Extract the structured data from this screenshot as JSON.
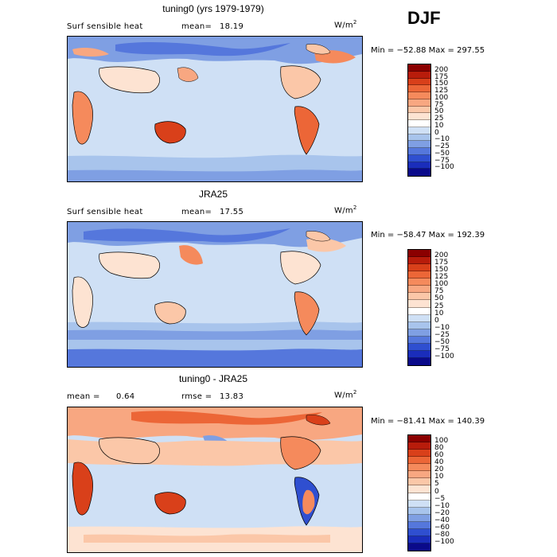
{
  "season": "DJF",
  "panels": [
    {
      "title": "tuning0 (yrs 1979-1979)",
      "left_label": "Surf sensible heat",
      "stat_label": "mean=",
      "stat_value": "18.19",
      "units": "W/m",
      "units_sup": "2",
      "minmax": "Min = −52.88  Max = 297.55",
      "scale_labels": [
        "200",
        "175",
        "150",
        "125",
        "100",
        "75",
        "50",
        "25",
        "10",
        "0",
        "−10",
        "−25",
        "−50",
        "−75",
        "−100"
      ],
      "colors": [
        "#8b0000",
        "#b81c0b",
        "#d9401a",
        "#ec6637",
        "#f58a5c",
        "#f8a781",
        "#fbc7a8",
        "#fde3d2",
        "#ffffff",
        "#cfe0f5",
        "#a8c4ec",
        "#7f9fe3",
        "#5577dc",
        "#2f4fd0",
        "#1a2dbb",
        "#0a0a8a"
      ]
    },
    {
      "title": "JRA25",
      "left_label": "Surf sensible heat",
      "stat_label": "mean=",
      "stat_value": "17.55",
      "units": "W/m",
      "units_sup": "2",
      "minmax": "Min = −58.47  Max = 192.39",
      "scale_labels": [
        "200",
        "175",
        "150",
        "125",
        "100",
        "75",
        "50",
        "25",
        "10",
        "0",
        "−10",
        "−25",
        "−50",
        "−75",
        "−100"
      ],
      "colors": [
        "#8b0000",
        "#b81c0b",
        "#d9401a",
        "#ec6637",
        "#f58a5c",
        "#f8a781",
        "#fbc7a8",
        "#fde3d2",
        "#ffffff",
        "#cfe0f5",
        "#a8c4ec",
        "#7f9fe3",
        "#5577dc",
        "#2f4fd0",
        "#1a2dbb",
        "#0a0a8a"
      ]
    },
    {
      "title": "tuning0 - JRA25",
      "left_label": "mean =",
      "left_value": "0.64",
      "stat_label": "rmse =",
      "stat_value": "13.83",
      "units": "W/m",
      "units_sup": "2",
      "minmax": "Min = −81.41  Max = 140.39",
      "scale_labels": [
        "100",
        "80",
        "60",
        "40",
        "20",
        "10",
        "5",
        "0",
        "−5",
        "−10",
        "−20",
        "−40",
        "−60",
        "−80",
        "−100"
      ],
      "colors": [
        "#8b0000",
        "#b81c0b",
        "#d9401a",
        "#ec6637",
        "#f58a5c",
        "#f8a781",
        "#fbc7a8",
        "#fde3d2",
        "#ffffff",
        "#cfe0f5",
        "#a8c4ec",
        "#7f9fe3",
        "#5577dc",
        "#2f4fd0",
        "#1a2dbb",
        "#0a0a8a"
      ]
    }
  ]
}
